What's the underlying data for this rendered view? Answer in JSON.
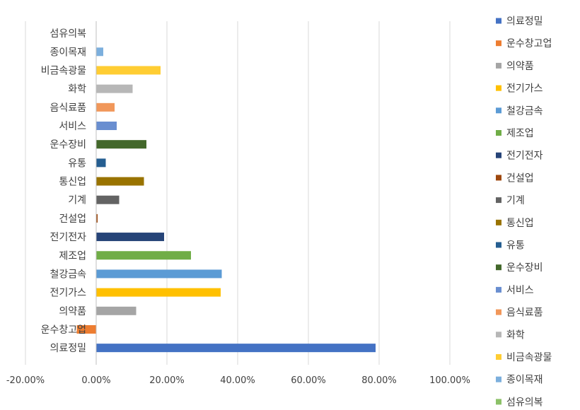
{
  "chart_data": {
    "type": "bar",
    "orientation": "horizontal",
    "categories": [
      "의료정밀",
      "운수창고업",
      "의약품",
      "전기가스",
      "철강금속",
      "제조업",
      "전기전자",
      "건설업",
      "기계",
      "통신업",
      "유통",
      "운수장비",
      "서비스",
      "음식료품",
      "화학",
      "비금속광물",
      "종이목재",
      "섬유의복"
    ],
    "values": [
      0.79,
      -0.055,
      0.113,
      0.352,
      0.355,
      0.268,
      0.192,
      0.004,
      0.065,
      0.135,
      0.027,
      0.142,
      0.058,
      0.052,
      0.103,
      0.182,
      0.02,
      0.0
    ],
    "colors": [
      "#4472C4",
      "#ED7D31",
      "#A5A5A5",
      "#FFC000",
      "#5B9BD5",
      "#70AD47",
      "#264478",
      "#9E480E",
      "#636363",
      "#997300",
      "#255E91",
      "#43682B",
      "#698ED0",
      "#F1975A",
      "#B7B7B7",
      "#FFCD33",
      "#7CAFDD",
      "#8CC168"
    ],
    "xlim": [
      -0.2,
      1.0
    ],
    "xticks": [
      -0.2,
      0.0,
      0.2,
      0.4,
      0.6,
      0.8,
      1.0
    ],
    "xtick_labels": [
      "-20.00%",
      "0.00%",
      "20.00%",
      "40.00%",
      "60.00%",
      "80.00%",
      "100.00%"
    ],
    "grid": "vertical",
    "legend_position": "right",
    "legend_entries": [
      "의료정밀",
      "운수창고업",
      "의약품",
      "전기가스",
      "철강금속",
      "제조업",
      "전기전자",
      "건설업",
      "기계",
      "통신업",
      "유통",
      "운수장비",
      "서비스",
      "음식료품",
      "화학",
      "비금속광물",
      "종이목재",
      "섬유의복"
    ],
    "title": "",
    "xlabel": "",
    "ylabel": ""
  }
}
